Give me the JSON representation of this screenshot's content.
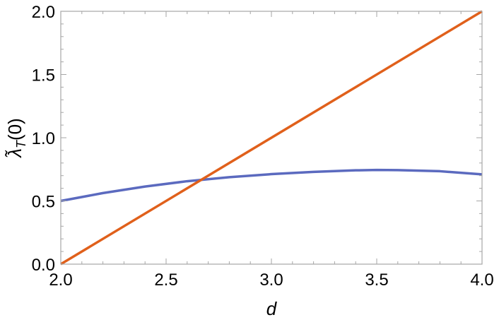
{
  "chart_data": {
    "type": "line",
    "xlabel": "d",
    "ylabel": "λ̃T(0)",
    "ylabel_parts": {
      "base": "λ̃",
      "sub": "T",
      "arg": "(0)"
    },
    "xlim": [
      2.0,
      4.0
    ],
    "ylim": [
      0.0,
      2.0
    ],
    "x_ticks": [
      2.0,
      2.5,
      3.0,
      3.5,
      4.0
    ],
    "x_tick_labels": [
      "2.0",
      "2.5",
      "3.0",
      "3.5",
      "4.0"
    ],
    "y_ticks": [
      0.0,
      0.5,
      1.0,
      1.5,
      2.0
    ],
    "y_tick_labels": [
      "0.0",
      "0.5",
      "1.0",
      "1.5",
      "2.0"
    ],
    "grid": false,
    "series": [
      {
        "color": "#5b6abf",
        "x": [
          2.0,
          2.2,
          2.4,
          2.6,
          2.8,
          3.0,
          3.2,
          3.4,
          3.5,
          3.6,
          3.8,
          4.0
        ],
        "y": [
          0.5,
          0.562,
          0.614,
          0.656,
          0.688,
          0.712,
          0.73,
          0.742,
          0.745,
          0.744,
          0.735,
          0.71
        ]
      },
      {
        "color": "#e0601b",
        "x": [
          2.0,
          4.0
        ],
        "y": [
          0.0,
          2.0
        ]
      }
    ]
  }
}
